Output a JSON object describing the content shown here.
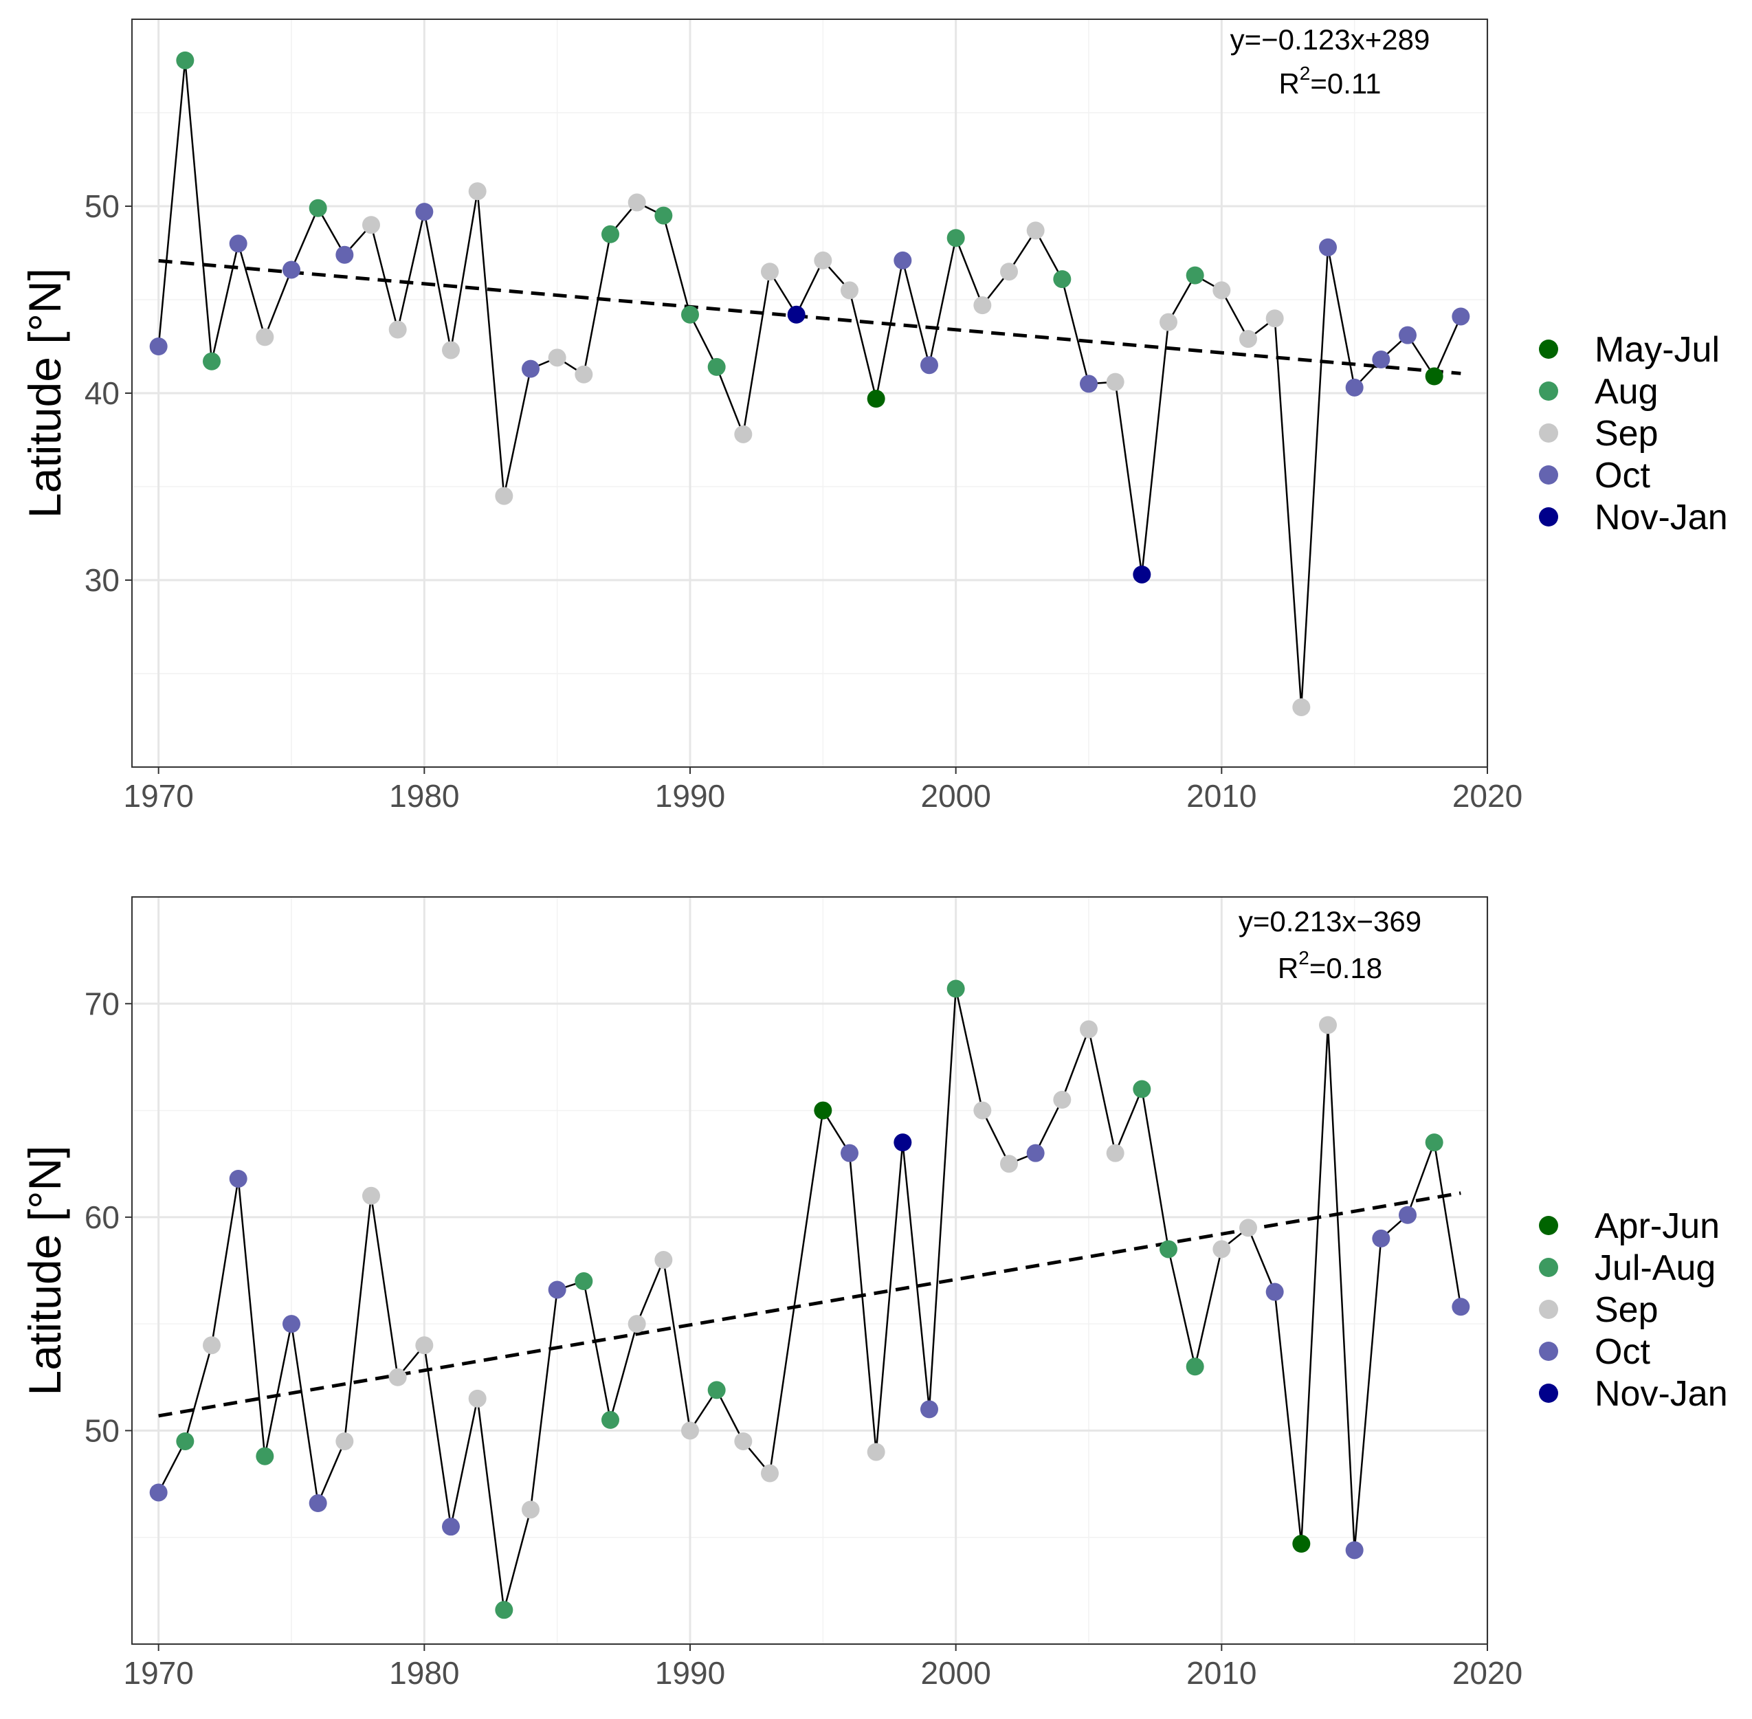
{
  "chart_data": [
    {
      "type": "scatter",
      "ylabel": "Latitude [°N]",
      "xlabel": "",
      "xlim": [
        1969,
        2020
      ],
      "ylim": [
        20,
        60
      ],
      "xticks": [
        1970,
        1980,
        1990,
        2000,
        2010,
        2020
      ],
      "yticks": [
        30,
        40,
        50
      ],
      "grid": true,
      "connect_points": true,
      "legend_position": "right",
      "equation": "y=−0.123x+289",
      "r2_text": "R",
      "r2_sup": "2",
      "r2_value": "=0.11",
      "trend": {
        "slope": -0.123,
        "x": [
          1970,
          2019
        ]
      },
      "legend": [
        {
          "label": "May-Jul",
          "color": "#006400"
        },
        {
          "label": "Aug",
          "color": "#3C9A60"
        },
        {
          "label": "Sep",
          "color": "#C8C8C8"
        },
        {
          "label": "Oct",
          "color": "#6464B0"
        },
        {
          "label": "Nov-Jan",
          "color": "#00008B"
        }
      ],
      "points": [
        {
          "x": 1970,
          "y": 42.5,
          "cat": "Oct"
        },
        {
          "x": 1971,
          "y": 57.8,
          "cat": "Aug"
        },
        {
          "x": 1972,
          "y": 41.7,
          "cat": "Aug"
        },
        {
          "x": 1973,
          "y": 48.0,
          "cat": "Oct"
        },
        {
          "x": 1974,
          "y": 43.0,
          "cat": "Sep"
        },
        {
          "x": 1975,
          "y": 46.6,
          "cat": "Oct"
        },
        {
          "x": 1976,
          "y": 49.9,
          "cat": "Aug"
        },
        {
          "x": 1977,
          "y": 47.4,
          "cat": "Oct"
        },
        {
          "x": 1978,
          "y": 49.0,
          "cat": "Sep"
        },
        {
          "x": 1979,
          "y": 43.4,
          "cat": "Sep"
        },
        {
          "x": 1980,
          "y": 49.7,
          "cat": "Oct"
        },
        {
          "x": 1981,
          "y": 42.3,
          "cat": "Sep"
        },
        {
          "x": 1982,
          "y": 50.8,
          "cat": "Sep"
        },
        {
          "x": 1983,
          "y": 34.5,
          "cat": "Sep"
        },
        {
          "x": 1984,
          "y": 41.3,
          "cat": "Oct"
        },
        {
          "x": 1985,
          "y": 41.9,
          "cat": "Sep"
        },
        {
          "x": 1986,
          "y": 41.0,
          "cat": "Sep"
        },
        {
          "x": 1987,
          "y": 48.5,
          "cat": "Aug"
        },
        {
          "x": 1988,
          "y": 50.2,
          "cat": "Sep"
        },
        {
          "x": 1989,
          "y": 49.5,
          "cat": "Aug"
        },
        {
          "x": 1990,
          "y": 44.2,
          "cat": "Aug"
        },
        {
          "x": 1991,
          "y": 41.4,
          "cat": "Aug"
        },
        {
          "x": 1992,
          "y": 37.8,
          "cat": "Sep"
        },
        {
          "x": 1993,
          "y": 46.5,
          "cat": "Sep"
        },
        {
          "x": 1994,
          "y": 44.2,
          "cat": "Nov-Jan"
        },
        {
          "x": 1995,
          "y": 47.1,
          "cat": "Sep"
        },
        {
          "x": 1996,
          "y": 45.5,
          "cat": "Sep"
        },
        {
          "x": 1997,
          "y": 39.7,
          "cat": "May-Jul"
        },
        {
          "x": 1998,
          "y": 47.1,
          "cat": "Oct"
        },
        {
          "x": 1999,
          "y": 41.5,
          "cat": "Oct"
        },
        {
          "x": 2000,
          "y": 48.3,
          "cat": "Aug"
        },
        {
          "x": 2001,
          "y": 44.7,
          "cat": "Sep"
        },
        {
          "x": 2002,
          "y": 46.5,
          "cat": "Sep"
        },
        {
          "x": 2003,
          "y": 48.7,
          "cat": "Sep"
        },
        {
          "x": 2004,
          "y": 46.1,
          "cat": "Aug"
        },
        {
          "x": 2005,
          "y": 40.5,
          "cat": "Oct"
        },
        {
          "x": 2006,
          "y": 40.6,
          "cat": "Sep"
        },
        {
          "x": 2007,
          "y": 30.3,
          "cat": "Nov-Jan"
        },
        {
          "x": 2008,
          "y": 43.8,
          "cat": "Sep"
        },
        {
          "x": 2009,
          "y": 46.3,
          "cat": "Aug"
        },
        {
          "x": 2010,
          "y": 45.5,
          "cat": "Sep"
        },
        {
          "x": 2011,
          "y": 42.9,
          "cat": "Sep"
        },
        {
          "x": 2012,
          "y": 44.0,
          "cat": "Sep"
        },
        {
          "x": 2013,
          "y": 23.2,
          "cat": "Sep"
        },
        {
          "x": 2014,
          "y": 47.8,
          "cat": "Oct"
        },
        {
          "x": 2015,
          "y": 40.3,
          "cat": "Oct"
        },
        {
          "x": 2016,
          "y": 41.8,
          "cat": "Oct"
        },
        {
          "x": 2017,
          "y": 43.1,
          "cat": "Oct"
        },
        {
          "x": 2018,
          "y": 40.9,
          "cat": "May-Jul"
        },
        {
          "x": 2019,
          "y": 44.1,
          "cat": "Oct"
        }
      ]
    },
    {
      "type": "scatter",
      "ylabel": "Latitude [°N]",
      "xlabel": "",
      "xlim": [
        1969,
        2020
      ],
      "ylim": [
        40,
        75
      ],
      "xticks": [
        1970,
        1980,
        1990,
        2000,
        2010,
        2020
      ],
      "yticks": [
        50,
        60,
        70
      ],
      "grid": true,
      "connect_points": true,
      "legend_position": "right",
      "equation": "y=0.213x−369",
      "r2_text": "R",
      "r2_sup": "2",
      "r2_value": "=0.18",
      "trend": {
        "slope": 0.213,
        "x": [
          1970,
          2019
        ]
      },
      "legend": [
        {
          "label": "Apr-Jun",
          "color": "#006400"
        },
        {
          "label": "Jul-Aug",
          "color": "#3C9A60"
        },
        {
          "label": "Sep",
          "color": "#C8C8C8"
        },
        {
          "label": "Oct",
          "color": "#6464B0"
        },
        {
          "label": "Nov-Jan",
          "color": "#00008B"
        }
      ],
      "points": [
        {
          "x": 1970,
          "y": 47.1,
          "cat": "Oct"
        },
        {
          "x": 1971,
          "y": 49.5,
          "cat": "Jul-Aug"
        },
        {
          "x": 1972,
          "y": 54.0,
          "cat": "Sep"
        },
        {
          "x": 1973,
          "y": 61.8,
          "cat": "Oct"
        },
        {
          "x": 1974,
          "y": 48.8,
          "cat": "Jul-Aug"
        },
        {
          "x": 1975,
          "y": 55.0,
          "cat": "Oct"
        },
        {
          "x": 1976,
          "y": 46.6,
          "cat": "Oct"
        },
        {
          "x": 1977,
          "y": 49.5,
          "cat": "Sep"
        },
        {
          "x": 1978,
          "y": 61.0,
          "cat": "Sep"
        },
        {
          "x": 1979,
          "y": 52.5,
          "cat": "Sep"
        },
        {
          "x": 1980,
          "y": 54.0,
          "cat": "Sep"
        },
        {
          "x": 1981,
          "y": 45.5,
          "cat": "Oct"
        },
        {
          "x": 1982,
          "y": 51.5,
          "cat": "Sep"
        },
        {
          "x": 1983,
          "y": 41.6,
          "cat": "Jul-Aug"
        },
        {
          "x": 1984,
          "y": 46.3,
          "cat": "Sep"
        },
        {
          "x": 1985,
          "y": 56.6,
          "cat": "Oct"
        },
        {
          "x": 1986,
          "y": 57.0,
          "cat": "Jul-Aug"
        },
        {
          "x": 1987,
          "y": 50.5,
          "cat": "Jul-Aug"
        },
        {
          "x": 1988,
          "y": 55.0,
          "cat": "Sep"
        },
        {
          "x": 1989,
          "y": 58.0,
          "cat": "Sep"
        },
        {
          "x": 1990,
          "y": 50.0,
          "cat": "Sep"
        },
        {
          "x": 1991,
          "y": 51.9,
          "cat": "Jul-Aug"
        },
        {
          "x": 1992,
          "y": 49.5,
          "cat": "Sep"
        },
        {
          "x": 1993,
          "y": 48.0,
          "cat": "Sep"
        },
        {
          "x": 1995,
          "y": 65.0,
          "cat": "Apr-Jun"
        },
        {
          "x": 1996,
          "y": 63.0,
          "cat": "Oct"
        },
        {
          "x": 1997,
          "y": 49.0,
          "cat": "Sep"
        },
        {
          "x": 1998,
          "y": 63.5,
          "cat": "Nov-Jan"
        },
        {
          "x": 1999,
          "y": 51.0,
          "cat": "Oct"
        },
        {
          "x": 2000,
          "y": 70.7,
          "cat": "Jul-Aug"
        },
        {
          "x": 2001,
          "y": 65.0,
          "cat": "Sep"
        },
        {
          "x": 2002,
          "y": 62.5,
          "cat": "Sep"
        },
        {
          "x": 2003,
          "y": 63.0,
          "cat": "Oct"
        },
        {
          "x": 2004,
          "y": 65.5,
          "cat": "Sep"
        },
        {
          "x": 2005,
          "y": 68.8,
          "cat": "Sep"
        },
        {
          "x": 2006,
          "y": 63.0,
          "cat": "Sep"
        },
        {
          "x": 2007,
          "y": 66.0,
          "cat": "Jul-Aug"
        },
        {
          "x": 2008,
          "y": 58.5,
          "cat": "Jul-Aug"
        },
        {
          "x": 2009,
          "y": 53.0,
          "cat": "Jul-Aug"
        },
        {
          "x": 2010,
          "y": 58.5,
          "cat": "Sep"
        },
        {
          "x": 2011,
          "y": 59.5,
          "cat": "Sep"
        },
        {
          "x": 2012,
          "y": 56.5,
          "cat": "Oct"
        },
        {
          "x": 2013,
          "y": 44.7,
          "cat": "Apr-Jun"
        },
        {
          "x": 2014,
          "y": 69.0,
          "cat": "Sep"
        },
        {
          "x": 2015,
          "y": 44.4,
          "cat": "Oct"
        },
        {
          "x": 2016,
          "y": 59.0,
          "cat": "Oct"
        },
        {
          "x": 2017,
          "y": 60.1,
          "cat": "Oct"
        },
        {
          "x": 2018,
          "y": 63.5,
          "cat": "Jul-Aug"
        },
        {
          "x": 2019,
          "y": 55.8,
          "cat": "Oct"
        }
      ]
    }
  ]
}
